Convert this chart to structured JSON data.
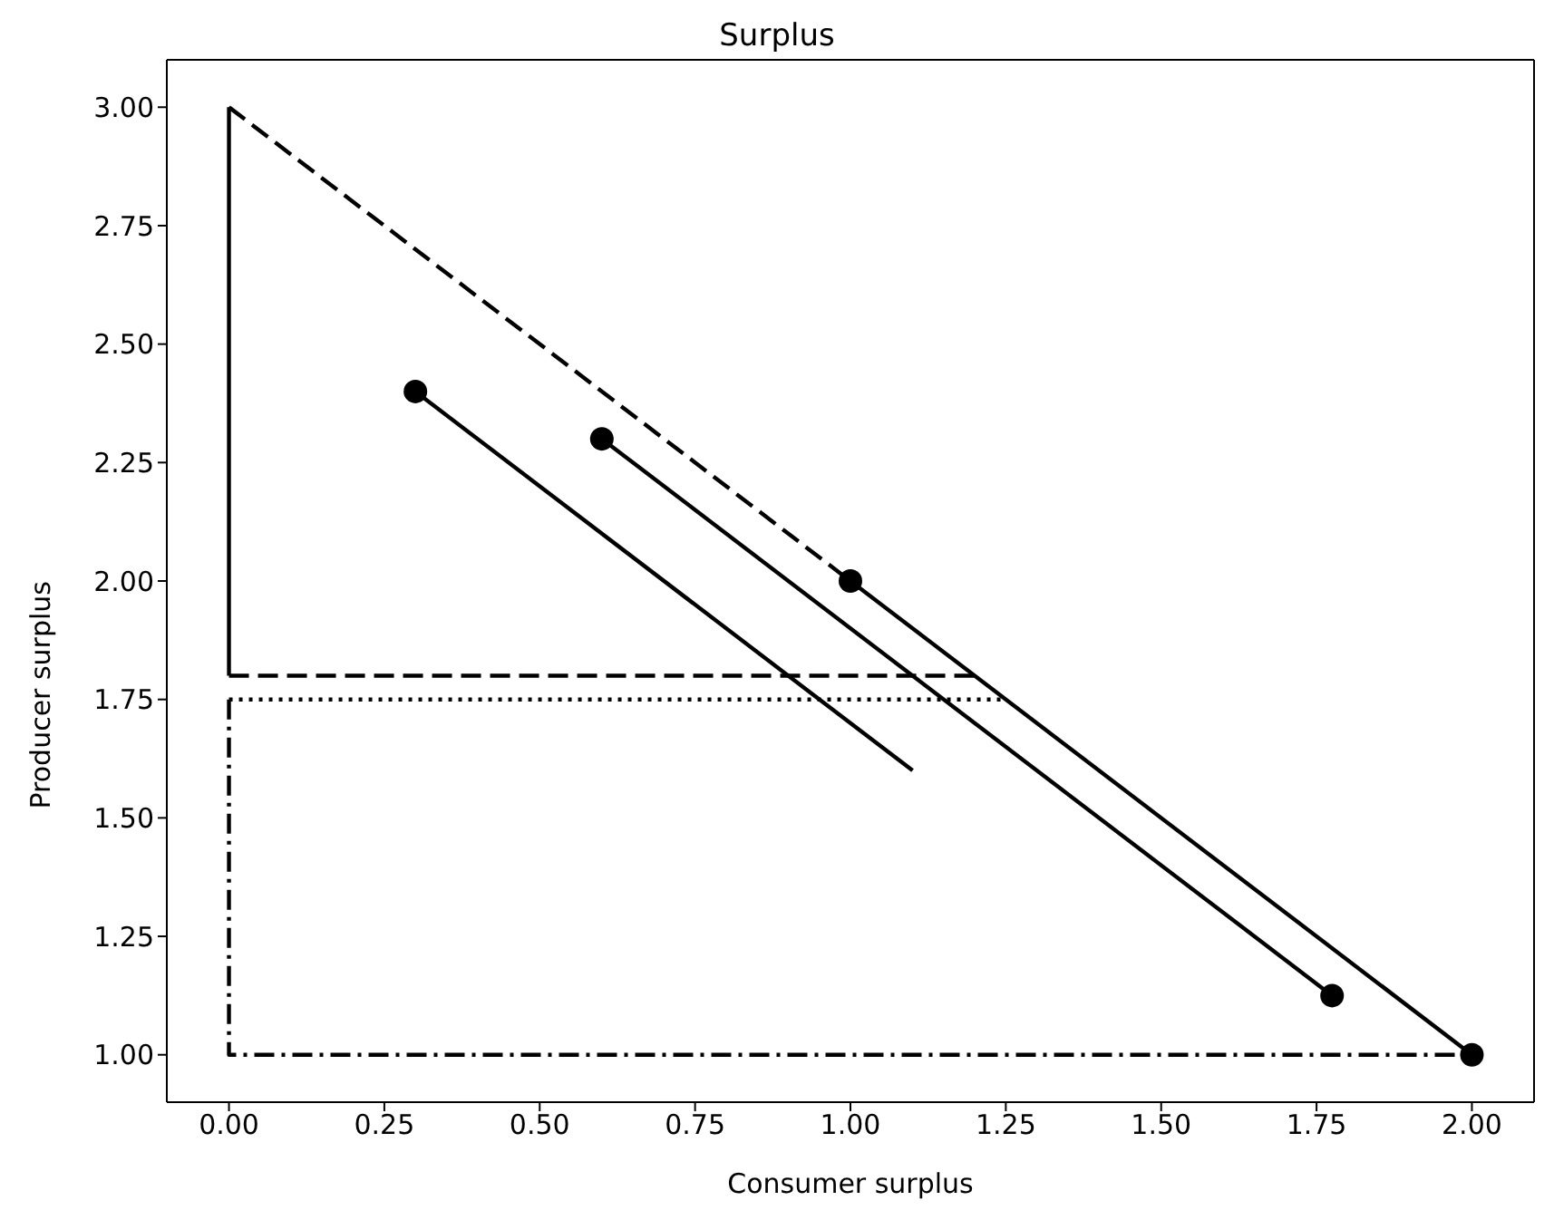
{
  "chart_data": {
    "type": "line",
    "title": "Surplus",
    "xlabel": "Consumer surplus",
    "ylabel": "Producer surplus",
    "xlim": [
      -0.1,
      2.1
    ],
    "ylim": [
      0.9,
      3.1
    ],
    "xticks": [
      {
        "value": 0,
        "label": "0.00"
      },
      {
        "value": 0.25,
        "label": "0.25"
      },
      {
        "value": 0.5,
        "label": "0.50"
      },
      {
        "value": 0.75,
        "label": "0.75"
      },
      {
        "value": 1,
        "label": "1.00"
      },
      {
        "value": 1.25,
        "label": "1.25"
      },
      {
        "value": 1.5,
        "label": "1.50"
      },
      {
        "value": 1.75,
        "label": "1.75"
      },
      {
        "value": 2,
        "label": "2.00"
      }
    ],
    "yticks": [
      {
        "value": 1,
        "label": "1.00"
      },
      {
        "value": 1.25,
        "label": "1.25"
      },
      {
        "value": 1.5,
        "label": "1.50"
      },
      {
        "value": 1.75,
        "label": "1.75"
      },
      {
        "value": 2,
        "label": "2.00"
      },
      {
        "value": 2.25,
        "label": "2.25"
      },
      {
        "value": 2.5,
        "label": "2.50"
      },
      {
        "value": 2.75,
        "label": "2.75"
      },
      {
        "value": 3,
        "label": "3.00"
      }
    ],
    "grid": false,
    "series": [
      {
        "color": "#000000",
        "line_style": "solid",
        "marker": "none",
        "x": [
          0,
          0
        ],
        "values": [
          3,
          1.8
        ]
      },
      {
        "color": "#000000",
        "line_style": "dashed",
        "marker": "none",
        "x": [
          0,
          1
        ],
        "values": [
          3,
          2
        ]
      },
      {
        "color": "#000000",
        "line_style": "solid",
        "marker": "none",
        "x": [
          1,
          2
        ],
        "values": [
          2,
          1
        ]
      },
      {
        "color": "#000000",
        "line_style": "solid",
        "marker": "none",
        "x": [
          0.6,
          1.775
        ],
        "values": [
          2.3,
          1.125
        ]
      },
      {
        "color": "#000000",
        "line_style": "solid",
        "marker": "none",
        "x": [
          0.3,
          1.1
        ],
        "values": [
          2.4,
          1.6
        ]
      },
      {
        "color": "#000000",
        "line_style": "dashed",
        "marker": "none",
        "x": [
          0,
          1.2
        ],
        "values": [
          1.8,
          1.8
        ]
      },
      {
        "color": "#000000",
        "line_style": "dotted",
        "marker": "none",
        "x": [
          0,
          1.25
        ],
        "values": [
          1.75,
          1.75
        ]
      },
      {
        "color": "#000000",
        "line_style": "dashdot",
        "marker": "none",
        "x": [
          0,
          0,
          2
        ],
        "values": [
          1.75,
          1,
          1
        ]
      },
      {
        "type": "scatter",
        "color": "#000000",
        "marker": "circle",
        "x": [
          0.3,
          0.6,
          1,
          1.775,
          2
        ],
        "values": [
          2.4,
          2.3,
          2,
          1.125,
          1
        ]
      }
    ]
  }
}
